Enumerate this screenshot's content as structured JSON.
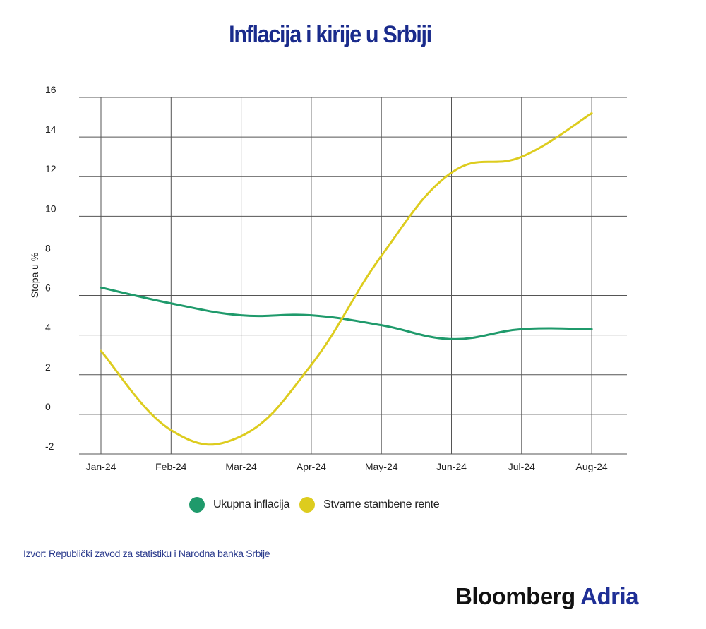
{
  "title": "Inflacija i kirije u Srbiji",
  "source": "Izvor: Republički zavod za statistiku i Narodna banka Srbije",
  "logo": {
    "part1": "Bloomberg",
    "part2": "Adria"
  },
  "chart_data": {
    "type": "line",
    "title": "Inflacija i kirije u Srbiji",
    "xlabel": "",
    "ylabel": "Stopa u %",
    "categories": [
      "Jan-24",
      "Feb-24",
      "Mar-24",
      "Apr-24",
      "May-24",
      "Jun-24",
      "Jul-24",
      "Aug-24"
    ],
    "ylim": [
      -2,
      16
    ],
    "yticks": [
      -2,
      0,
      2,
      4,
      6,
      8,
      10,
      12,
      14,
      16
    ],
    "grid": true,
    "legend_position": "bottom",
    "series": [
      {
        "name": "Ukupna inflacija",
        "color": "#1f9a6b",
        "values": [
          6.4,
          5.6,
          5.0,
          5.0,
          4.5,
          3.8,
          4.3,
          4.3
        ]
      },
      {
        "name": "Stvarne stambene rente",
        "color": "#ddcc1e",
        "values": [
          3.2,
          -0.8,
          -1.1,
          2.5,
          8.0,
          12.2,
          13.0,
          15.2
        ]
      }
    ]
  }
}
